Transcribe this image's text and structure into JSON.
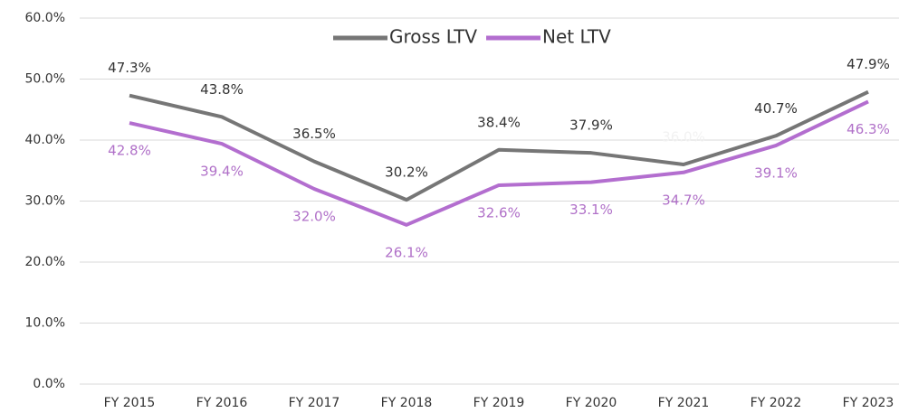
{
  "chart_data": {
    "type": "line",
    "categories": [
      "FY 2015",
      "FY 2016",
      "FY 2017",
      "FY 2018",
      "FY 2019",
      "FY 2020",
      "FY 2021",
      "FY 2022",
      "FY 2023"
    ],
    "series": [
      {
        "name": "Gross LTV",
        "color": "#767676",
        "label_color": "#333333",
        "values": [
          47.3,
          43.8,
          36.5,
          30.2,
          38.4,
          37.9,
          36.0,
          40.7,
          47.9
        ],
        "value_labels": [
          "47.3%",
          "43.8%",
          "36.5%",
          "30.2%",
          "38.4%",
          "37.9%",
          "36.0%",
          "40.7%",
          "47.9%"
        ]
      },
      {
        "name": "Net LTV",
        "color": "#b36ecf",
        "label_color": "#b070c8",
        "values": [
          42.8,
          39.4,
          32.0,
          26.1,
          32.6,
          33.1,
          34.7,
          39.1,
          46.3
        ],
        "value_labels": [
          "42.8%",
          "39.4%",
          "32.0%",
          "26.1%",
          "32.6%",
          "33.1%",
          "34.7%",
          "39.1%",
          "46.3%"
        ]
      }
    ],
    "ylim": [
      0,
      60
    ],
    "yticks": [
      {
        "value": 0,
        "label": "0.0%"
      },
      {
        "value": 10,
        "label": "10.0%"
      },
      {
        "value": 20,
        "label": "20.0%"
      },
      {
        "value": 30,
        "label": "30.0%"
      },
      {
        "value": 40,
        "label": "40.0%"
      },
      {
        "value": 50,
        "label": "50.0%"
      },
      {
        "value": 60,
        "label": "60.0%"
      }
    ],
    "grid": true,
    "legend": "top"
  }
}
